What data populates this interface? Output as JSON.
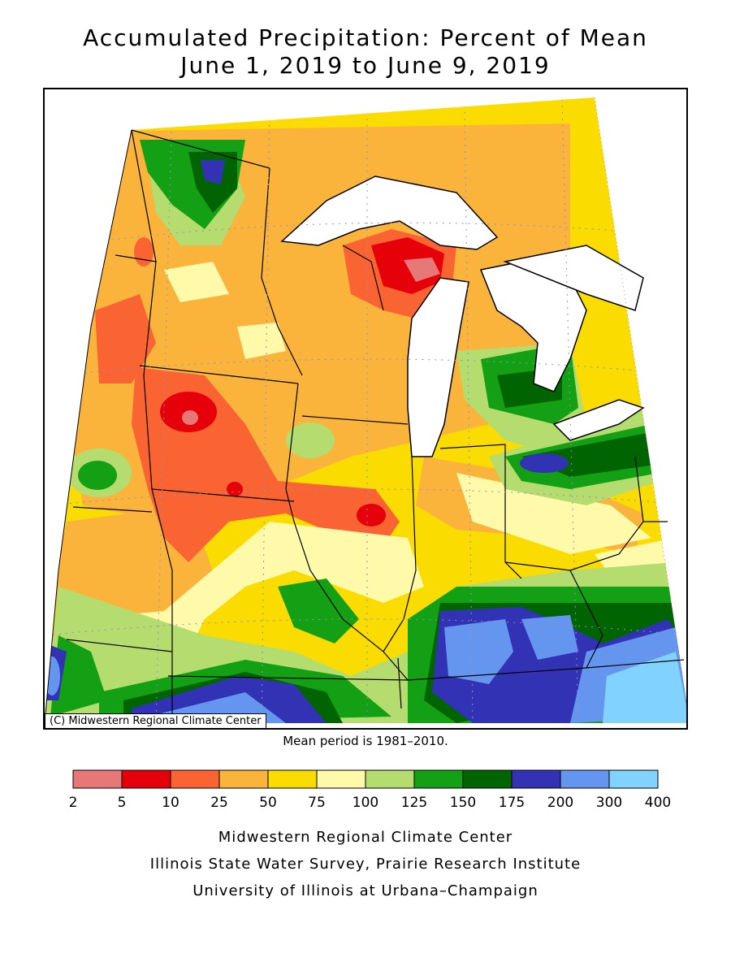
{
  "title": {
    "line1": "Accumulated Precipitation: Percent of Mean",
    "line2": "June 1, 2019 to June 9, 2019"
  },
  "map": {
    "credit": "(C) Midwestern Regional Climate Center",
    "mean_period": "Mean period is 1981–2010."
  },
  "legend": {
    "bins": [
      {
        "low": "2",
        "high": "5",
        "color": "#e67878"
      },
      {
        "low": "5",
        "high": "10",
        "color": "#e6000a"
      },
      {
        "low": "10",
        "high": "25",
        "color": "#fa6432"
      },
      {
        "low": "25",
        "high": "50",
        "color": "#fab43c"
      },
      {
        "low": "50",
        "high": "75",
        "color": "#fadc00"
      },
      {
        "low": "75",
        "high": "100",
        "color": "#fffaaa"
      },
      {
        "low": "100",
        "high": "125",
        "color": "#b4dc6e"
      },
      {
        "low": "125",
        "high": "150",
        "color": "#14a014"
      },
      {
        "low": "150",
        "high": "175",
        "color": "#006400"
      },
      {
        "low": "175",
        "high": "200",
        "color": "#3232b4"
      },
      {
        "low": "200",
        "high": "300",
        "color": "#6496f0"
      },
      {
        "low": "300",
        "high": "400",
        "color": "#82d2ff"
      }
    ],
    "labels": [
      "2",
      "5",
      "10",
      "25",
      "50",
      "75",
      "100",
      "125",
      "150",
      "175",
      "200",
      "300",
      "400"
    ]
  },
  "footer": {
    "line1": "Midwestern Regional Climate Center",
    "line2": "Illinois State Water Survey, Prairie Research Institute",
    "line3": "University of Illinois at Urbana–Champaign"
  }
}
